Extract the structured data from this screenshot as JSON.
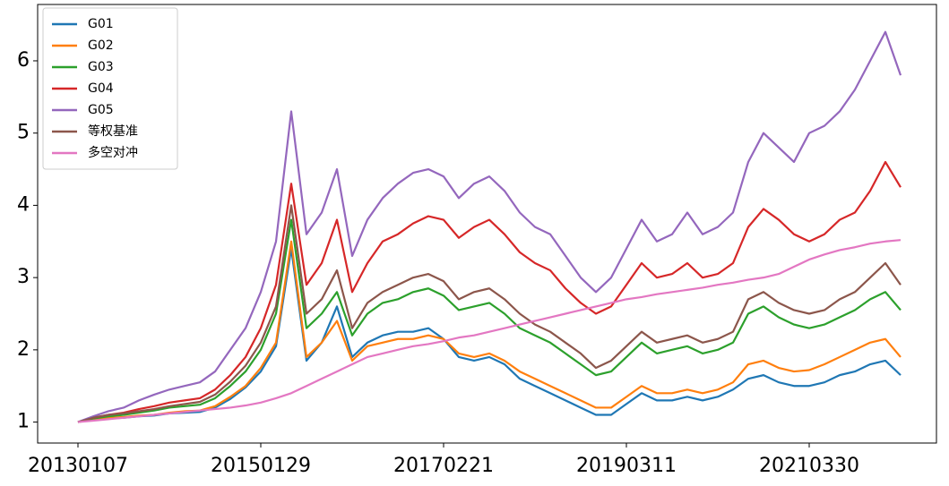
{
  "chart_data": {
    "type": "line",
    "categories": [
      "20130107",
      null,
      null,
      null,
      null,
      null,
      null,
      null,
      null,
      null,
      null,
      null,
      "20150129",
      null,
      null,
      null,
      null,
      null,
      null,
      null,
      null,
      null,
      null,
      null,
      "20170221",
      null,
      null,
      null,
      null,
      null,
      null,
      null,
      null,
      null,
      null,
      null,
      "20190311",
      null,
      null,
      null,
      null,
      null,
      null,
      null,
      null,
      null,
      null,
      null,
      "20210330",
      null,
      null,
      null,
      null,
      null,
      null
    ],
    "ylim": [
      0.71,
      6.78
    ],
    "yticks": [
      1,
      2,
      3,
      4,
      5,
      6
    ],
    "grid": false,
    "legend": "upper left",
    "series": [
      {
        "name": "G01",
        "color": "#1f77b4",
        "values": [
          1.0,
          1.04,
          1.05,
          1.06,
          1.08,
          1.09,
          1.12,
          1.13,
          1.14,
          1.2,
          1.32,
          1.48,
          1.7,
          2.05,
          3.4,
          1.85,
          2.1,
          2.6,
          1.9,
          2.1,
          2.2,
          2.25,
          2.25,
          2.3,
          2.15,
          1.9,
          1.85,
          1.9,
          1.8,
          1.6,
          1.5,
          1.4,
          1.3,
          1.2,
          1.1,
          1.1,
          1.25,
          1.4,
          1.3,
          1.3,
          1.35,
          1.3,
          1.35,
          1.45,
          1.6,
          1.65,
          1.55,
          1.5,
          1.5,
          1.55,
          1.65,
          1.7,
          1.8,
          1.85,
          1.65
        ]
      },
      {
        "name": "G02",
        "color": "#ff7f0e",
        "values": [
          1.0,
          1.04,
          1.06,
          1.07,
          1.09,
          1.1,
          1.13,
          1.15,
          1.16,
          1.22,
          1.35,
          1.5,
          1.75,
          2.1,
          3.5,
          1.9,
          2.1,
          2.4,
          1.85,
          2.05,
          2.1,
          2.15,
          2.15,
          2.2,
          2.15,
          1.95,
          1.9,
          1.95,
          1.85,
          1.7,
          1.6,
          1.5,
          1.4,
          1.3,
          1.2,
          1.2,
          1.35,
          1.5,
          1.4,
          1.4,
          1.45,
          1.4,
          1.45,
          1.55,
          1.8,
          1.85,
          1.75,
          1.7,
          1.72,
          1.8,
          1.9,
          2.0,
          2.1,
          2.15,
          1.9
        ]
      },
      {
        "name": "G03",
        "color": "#2ca02c",
        "values": [
          1.0,
          1.05,
          1.08,
          1.1,
          1.13,
          1.16,
          1.2,
          1.22,
          1.24,
          1.33,
          1.5,
          1.7,
          2.0,
          2.5,
          3.8,
          2.3,
          2.5,
          2.8,
          2.2,
          2.5,
          2.65,
          2.7,
          2.8,
          2.85,
          2.75,
          2.55,
          2.6,
          2.65,
          2.5,
          2.3,
          2.2,
          2.1,
          1.95,
          1.8,
          1.65,
          1.7,
          1.9,
          2.1,
          1.95,
          2.0,
          2.05,
          1.95,
          2.0,
          2.1,
          2.5,
          2.6,
          2.45,
          2.35,
          2.3,
          2.35,
          2.45,
          2.55,
          2.7,
          2.8,
          2.55
        ]
      },
      {
        "name": "G04",
        "color": "#d62728",
        "values": [
          1.0,
          1.06,
          1.1,
          1.13,
          1.18,
          1.22,
          1.27,
          1.3,
          1.33,
          1.45,
          1.65,
          1.9,
          2.3,
          2.9,
          4.3,
          2.9,
          3.2,
          3.8,
          2.8,
          3.2,
          3.5,
          3.6,
          3.75,
          3.85,
          3.8,
          3.55,
          3.7,
          3.8,
          3.6,
          3.35,
          3.2,
          3.1,
          2.85,
          2.65,
          2.5,
          2.6,
          2.9,
          3.2,
          3.0,
          3.05,
          3.2,
          3.0,
          3.05,
          3.2,
          3.7,
          3.95,
          3.8,
          3.6,
          3.5,
          3.6,
          3.8,
          3.9,
          4.2,
          4.6,
          4.25
        ]
      },
      {
        "name": "G05",
        "color": "#9467bd",
        "values": [
          1.0,
          1.08,
          1.15,
          1.2,
          1.3,
          1.38,
          1.45,
          1.5,
          1.55,
          1.7,
          2.0,
          2.3,
          2.8,
          3.5,
          5.3,
          3.6,
          3.9,
          4.5,
          3.3,
          3.8,
          4.1,
          4.3,
          4.45,
          4.5,
          4.4,
          4.1,
          4.3,
          4.4,
          4.2,
          3.9,
          3.7,
          3.6,
          3.3,
          3.0,
          2.8,
          3.0,
          3.4,
          3.8,
          3.5,
          3.6,
          3.9,
          3.6,
          3.7,
          3.9,
          4.6,
          5.0,
          4.8,
          4.6,
          5.0,
          5.1,
          5.3,
          5.6,
          6.0,
          6.4,
          5.8
        ]
      },
      {
        "name": "等权基准",
        "color": "#8c564b",
        "values": [
          1.0,
          1.06,
          1.1,
          1.12,
          1.15,
          1.18,
          1.22,
          1.25,
          1.28,
          1.38,
          1.56,
          1.78,
          2.1,
          2.6,
          4.0,
          2.5,
          2.7,
          3.1,
          2.3,
          2.65,
          2.8,
          2.9,
          3.0,
          3.05,
          2.95,
          2.7,
          2.8,
          2.85,
          2.7,
          2.5,
          2.35,
          2.25,
          2.1,
          1.95,
          1.75,
          1.85,
          2.05,
          2.25,
          2.1,
          2.15,
          2.2,
          2.1,
          2.15,
          2.25,
          2.7,
          2.8,
          2.65,
          2.55,
          2.5,
          2.55,
          2.7,
          2.8,
          3.0,
          3.2,
          2.9
        ]
      },
      {
        "name": "多空对冲",
        "color": "#e377c2",
        "values": [
          1.0,
          1.02,
          1.04,
          1.06,
          1.08,
          1.1,
          1.12,
          1.14,
          1.16,
          1.18,
          1.2,
          1.23,
          1.27,
          1.33,
          1.4,
          1.5,
          1.6,
          1.7,
          1.8,
          1.9,
          1.95,
          2.0,
          2.05,
          2.08,
          2.12,
          2.17,
          2.2,
          2.25,
          2.3,
          2.35,
          2.4,
          2.45,
          2.5,
          2.55,
          2.6,
          2.65,
          2.7,
          2.73,
          2.77,
          2.8,
          2.83,
          2.86,
          2.9,
          2.93,
          2.97,
          3.0,
          3.05,
          3.15,
          3.25,
          3.32,
          3.38,
          3.42,
          3.47,
          3.5,
          3.52
        ]
      }
    ]
  }
}
